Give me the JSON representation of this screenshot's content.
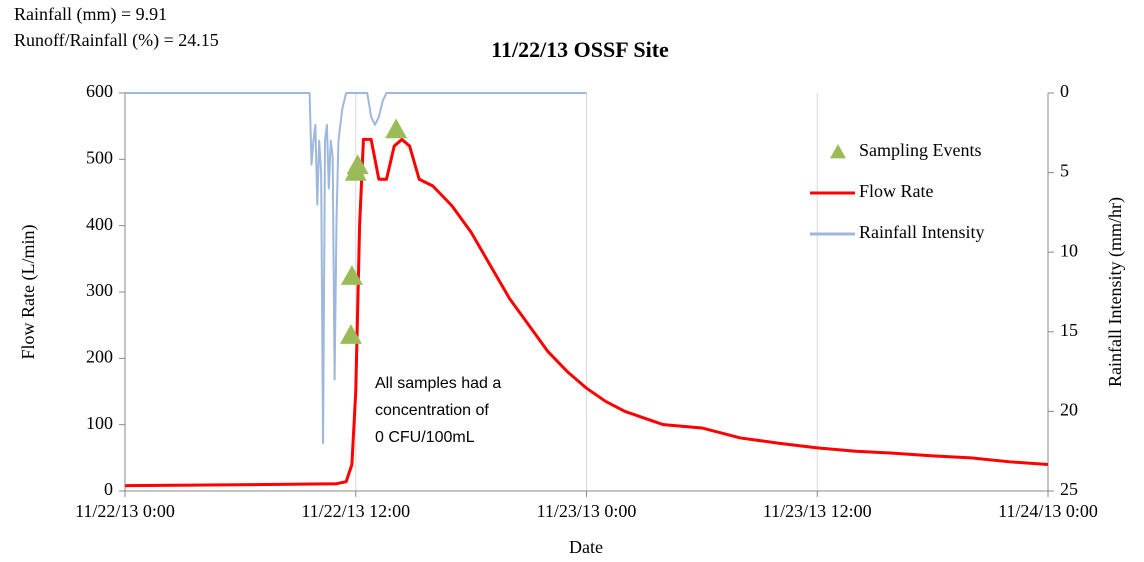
{
  "chart_data": {
    "type": "line",
    "title": "11/22/13 OSSF Site",
    "annotations": [
      "Rainfall (mm) = 9.91",
      "Runoff/Rainfall (%) = 24.15"
    ],
    "note": [
      "All samples had a concentration of",
      "0 CFU/100mL"
    ],
    "note_lines": [
      "All samples had a",
      "concentration of",
      "0 CFU/100mL"
    ],
    "x_label": "Date",
    "y_label": "Flow Rate (L/min)",
    "y2_label": "Rainfall Intensity (mm/hr)",
    "xlim": [
      "11/22/13 0:00",
      "11/24/13 0:00"
    ],
    "xticks": [
      "11/22/13 0:00",
      "11/22/13 12:00",
      "11/23/13 0:00",
      "11/23/13 12:00",
      "11/24/13 0:00"
    ],
    "ylim": [
      0,
      600
    ],
    "yticks": [
      0,
      100,
      200,
      300,
      400,
      500,
      600
    ],
    "y2lim": [
      25,
      0
    ],
    "y2ticks": [
      0,
      5,
      10,
      15,
      20,
      25
    ],
    "grid": "x",
    "legend": "upper right",
    "series": [
      {
        "name": "Sampling Events",
        "color": "#9bbb59",
        "style": "markers",
        "x": [
          "11/22/13 11:45",
          "11/22/13 11:48",
          "11/22/13 12:00",
          "11/22/13 12:06",
          "11/22/13 14:06"
        ],
        "values": [
          235,
          324,
          481,
          491,
          545
        ]
      },
      {
        "name": "Flow Rate",
        "color": "#ff0000",
        "style": "line",
        "x": [
          "11/22/13 0:00",
          "11/22/13 8:00",
          "11/22/13 11:00",
          "11/22/13 11:30",
          "11/22/13 11:48",
          "11/22/13 12:00",
          "11/22/13 12:12",
          "11/22/13 12:24",
          "11/22/13 12:48",
          "11/22/13 13:12",
          "11/22/13 13:36",
          "11/22/13 14:00",
          "11/22/13 14:24",
          "11/22/13 14:48",
          "11/22/13 15:18",
          "11/22/13 16:00",
          "11/22/13 17:00",
          "11/22/13 18:00",
          "11/22/13 19:00",
          "11/22/13 20:00",
          "11/22/13 21:00",
          "11/22/13 22:00",
          "11/22/13 23:00",
          "11/23/13 0:00",
          "11/23/13 1:00",
          "11/23/13 2:00",
          "11/23/13 3:00",
          "11/23/13 4:00",
          "11/23/13 6:00",
          "11/23/13 8:00",
          "11/23/13 10:00",
          "11/23/13 12:00",
          "11/23/13 14:00",
          "11/23/13 16:00",
          "11/23/13 18:00",
          "11/23/13 20:00",
          "11/23/13 22:00",
          "11/24/13 0:00"
        ],
        "values": [
          8,
          10,
          11,
          14,
          40,
          150,
          400,
          530,
          530,
          470,
          470,
          520,
          530,
          520,
          470,
          460,
          430,
          390,
          340,
          290,
          250,
          210,
          180,
          155,
          135,
          120,
          110,
          100,
          95,
          80,
          72,
          65,
          60,
          57,
          53,
          50,
          44,
          40
        ]
      },
      {
        "name": "Rainfall Intensity",
        "color": "#9db8dc",
        "style": "line",
        "axis": "y2",
        "x": [
          "11/22/13 0:00",
          "11/22/13 9:36",
          "11/22/13 9:42",
          "11/22/13 9:48",
          "11/22/13 9:54",
          "11/22/13 10:00",
          "11/22/13 10:06",
          "11/22/13 10:12",
          "11/22/13 10:18",
          "11/22/13 10:24",
          "11/22/13 10:30",
          "11/22/13 10:36",
          "11/22/13 10:42",
          "11/22/13 10:48",
          "11/22/13 10:54",
          "11/22/13 11:00",
          "11/22/13 11:06",
          "11/22/13 11:18",
          "11/22/13 11:30",
          "11/22/13 12:00",
          "11/22/13 12:36",
          "11/22/13 12:48",
          "11/22/13 13:00",
          "11/22/13 13:12",
          "11/22/13 13:24",
          "11/22/13 13:36",
          "11/23/13 0:00"
        ],
        "values": [
          0,
          0,
          4.5,
          3,
          2,
          7,
          3,
          5,
          22,
          3,
          2,
          6,
          3,
          4,
          18,
          8,
          3,
          1,
          0,
          0,
          0,
          1.5,
          2,
          1.5,
          0.5,
          0,
          0
        ]
      }
    ]
  }
}
